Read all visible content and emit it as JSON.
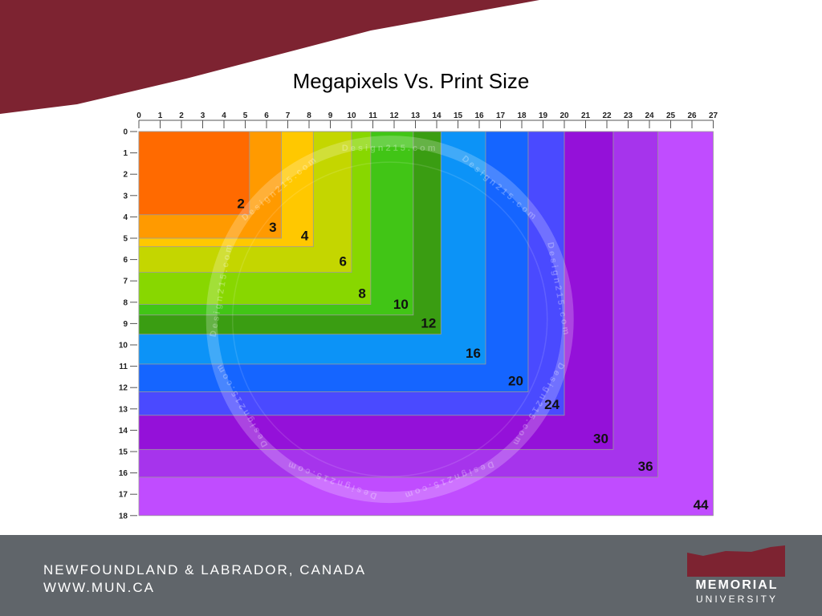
{
  "slide": {
    "title": "Megapixels Vs. Print Size",
    "banner_color": "#7d2331"
  },
  "footer": {
    "region": "NEWFOUNDLAND & LABRADOR, CANADA",
    "url": "WWW.MUN.CA",
    "background": "#60656a",
    "logo": {
      "name": "MEMORIAL",
      "sub": "UNIVERSITY",
      "flag_color": "#7d2331"
    }
  },
  "chart_data": {
    "type": "area",
    "title": "Megapixels Vs. Print Size",
    "xlabel": "",
    "ylabel": "",
    "xlim": [
      0,
      27
    ],
    "ylim": [
      0,
      18
    ],
    "x_ticks": [
      0,
      1,
      2,
      3,
      4,
      5,
      6,
      7,
      8,
      9,
      10,
      11,
      12,
      13,
      14,
      15,
      16,
      17,
      18,
      19,
      20,
      21,
      22,
      23,
      24,
      25,
      26,
      27
    ],
    "y_ticks": [
      0,
      1,
      2,
      3,
      4,
      5,
      6,
      7,
      8,
      9,
      10,
      11,
      12,
      13,
      14,
      15,
      16,
      17,
      18
    ],
    "grid": false,
    "legend": "none",
    "watermark": "Design215.com",
    "series": [
      {
        "name": "44",
        "width": 27.0,
        "height": 18.0,
        "color": "#c04cff"
      },
      {
        "name": "36",
        "width": 24.4,
        "height": 16.2,
        "color": "#a634ec"
      },
      {
        "name": "30",
        "width": 22.3,
        "height": 14.9,
        "color": "#9411d9"
      },
      {
        "name": "24",
        "width": 20.0,
        "height": 13.3,
        "color": "#4a4aff"
      },
      {
        "name": "20",
        "width": 18.3,
        "height": 12.2,
        "color": "#1565ff"
      },
      {
        "name": "16",
        "width": 16.3,
        "height": 10.9,
        "color": "#0c93f7"
      },
      {
        "name": "12",
        "width": 14.2,
        "height": 9.5,
        "color": "#3a9d12"
      },
      {
        "name": "10",
        "width": 12.9,
        "height": 8.6,
        "color": "#41c516"
      },
      {
        "name": "8",
        "width": 10.9,
        "height": 8.1,
        "color": "#88d700"
      },
      {
        "name": "6",
        "width": 10.0,
        "height": 6.6,
        "color": "#c4d600"
      },
      {
        "name": "4",
        "width": 8.2,
        "height": 5.4,
        "color": "#ffc800"
      },
      {
        "name": "3",
        "width": 6.7,
        "height": 5.0,
        "color": "#ff9a00"
      },
      {
        "name": "2",
        "width": 5.2,
        "height": 3.9,
        "color": "#ff6a00"
      }
    ]
  }
}
